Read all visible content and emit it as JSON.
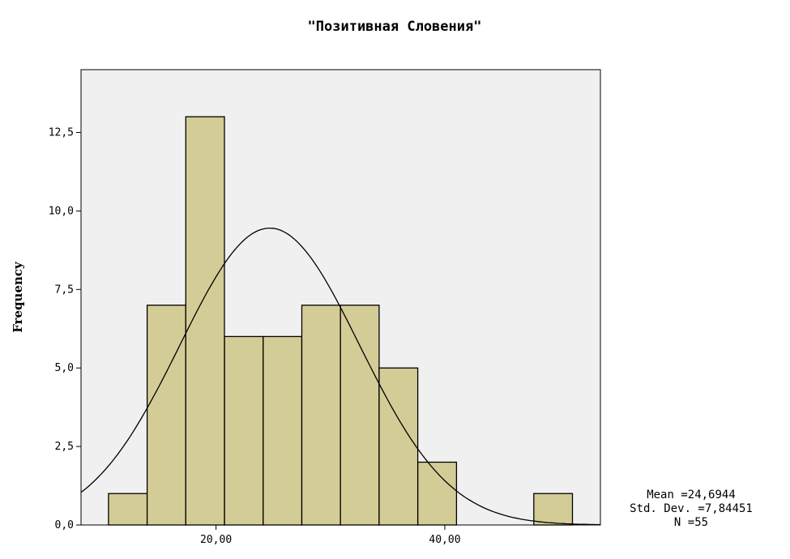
{
  "chart_data": {
    "type": "bar",
    "title": "\"Позитивная Словения\"",
    "xlabel": "",
    "ylabel": "Frequency",
    "x_range": [
      8.2,
      53.6
    ],
    "ylim": [
      0,
      14.5
    ],
    "bins": [
      {
        "start": 10.6,
        "end": 13.98,
        "count": 1
      },
      {
        "start": 13.98,
        "end": 17.36,
        "count": 7
      },
      {
        "start": 17.36,
        "end": 20.74,
        "count": 13
      },
      {
        "start": 20.74,
        "end": 24.12,
        "count": 6
      },
      {
        "start": 24.12,
        "end": 27.5,
        "count": 6
      },
      {
        "start": 27.5,
        "end": 30.88,
        "count": 7
      },
      {
        "start": 30.88,
        "end": 34.26,
        "count": 7
      },
      {
        "start": 34.26,
        "end": 37.64,
        "count": 5
      },
      {
        "start": 37.64,
        "end": 41.02,
        "count": 2
      },
      {
        "start": 41.02,
        "end": 44.4,
        "count": 0
      },
      {
        "start": 44.4,
        "end": 47.78,
        "count": 0
      },
      {
        "start": 47.78,
        "end": 51.16,
        "count": 1
      }
    ],
    "x_ticks": [
      {
        "value": 20,
        "label": "20,00"
      },
      {
        "value": 40,
        "label": "40,00"
      }
    ],
    "y_ticks": [
      {
        "value": 0,
        "label": "0,0"
      },
      {
        "value": 2.5,
        "label": "2,5"
      },
      {
        "value": 5,
        "label": "5,0"
      },
      {
        "value": 7.5,
        "label": "7,5"
      },
      {
        "value": 10,
        "label": "10,0"
      },
      {
        "value": 12.5,
        "label": "12,5"
      }
    ],
    "normal_curve": {
      "mean": 24.6944,
      "std": 7.84451,
      "n": 55,
      "bin_width": 3.38
    },
    "grid": false,
    "legend": "none",
    "colors": {
      "bar_fill": "#d4cc97",
      "bar_stroke": "#000000",
      "plot_bg": "#f0f0f0",
      "curve": "#000000"
    }
  },
  "stats": {
    "mean_text": "Mean =24,6944",
    "std_text": "Std. Dev. =7,84451",
    "n_text": "N =55"
  }
}
